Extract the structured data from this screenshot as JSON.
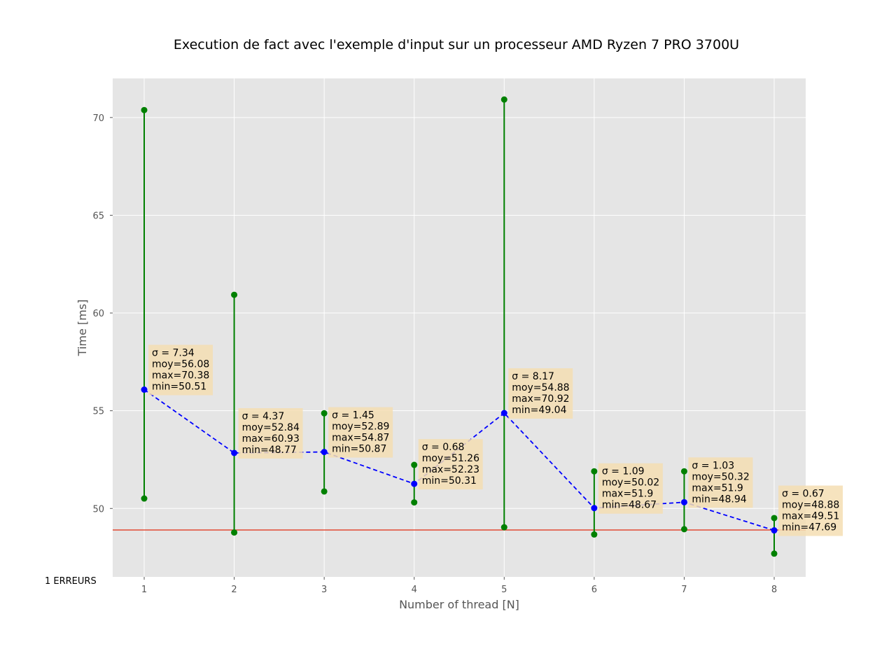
{
  "chart_data": {
    "type": "line",
    "title": "Execution de fact avec l'exemple d'input sur un processeur AMD Ryzen 7 PRO 3700U",
    "xlabel": "Number of thread [N]",
    "ylabel": "Time [ms]",
    "x": [
      1,
      2,
      3,
      4,
      5,
      6,
      7,
      8
    ],
    "xlim": [
      0.65,
      8.35
    ],
    "ylim": [
      46.5,
      72.0
    ],
    "xticks": [
      "1",
      "2",
      "3",
      "4",
      "5",
      "6",
      "7",
      "8"
    ],
    "yticks": [
      50,
      55,
      60,
      65,
      70
    ],
    "grid": true,
    "series": [
      {
        "style": "dashed-line",
        "values": [
          56.08,
          52.84,
          52.89,
          51.26,
          54.88,
          50.02,
          50.32,
          48.88
        ]
      }
    ],
    "ranges": {
      "min": [
        50.51,
        48.77,
        50.87,
        50.31,
        49.04,
        48.67,
        48.94,
        47.69
      ],
      "max": [
        70.38,
        60.93,
        54.87,
        52.23,
        70.92,
        51.9,
        51.9,
        49.51
      ]
    },
    "sigma": [
      7.34,
      4.37,
      1.45,
      0.68,
      8.17,
      1.09,
      1.03,
      0.67
    ],
    "annotations": [
      [
        "σ = 7.34",
        "moy=56.08",
        "max=70.38",
        "min=50.51"
      ],
      [
        "σ = 4.37",
        "moy=52.84",
        "max=60.93",
        "min=48.77"
      ],
      [
        "σ = 1.45",
        "moy=52.89",
        "max=54.87",
        "min=50.87"
      ],
      [
        "σ = 0.68",
        "moy=51.26",
        "max=52.23",
        "min=50.31"
      ],
      [
        "σ = 8.17",
        "moy=54.88",
        "max=70.92",
        "min=49.04"
      ],
      [
        "σ = 1.09",
        "moy=50.02",
        "max=51.9",
        "min=48.67"
      ],
      [
        "σ = 1.03",
        "moy=50.32",
        "max=51.9",
        "min=48.94"
      ],
      [
        "σ = 0.67",
        "moy=48.88",
        "max=49.51",
        "min=47.69"
      ]
    ],
    "reference_line": {
      "y": 48.9
    },
    "error_label": "1 ERREURS",
    "colors": {
      "mean": "#0000ff",
      "range": "#008000",
      "reference": "#e24a33",
      "plot_bg": "#e5e5e5",
      "grid": "#ffffff",
      "annotation_bg": "#f5deb3"
    }
  }
}
